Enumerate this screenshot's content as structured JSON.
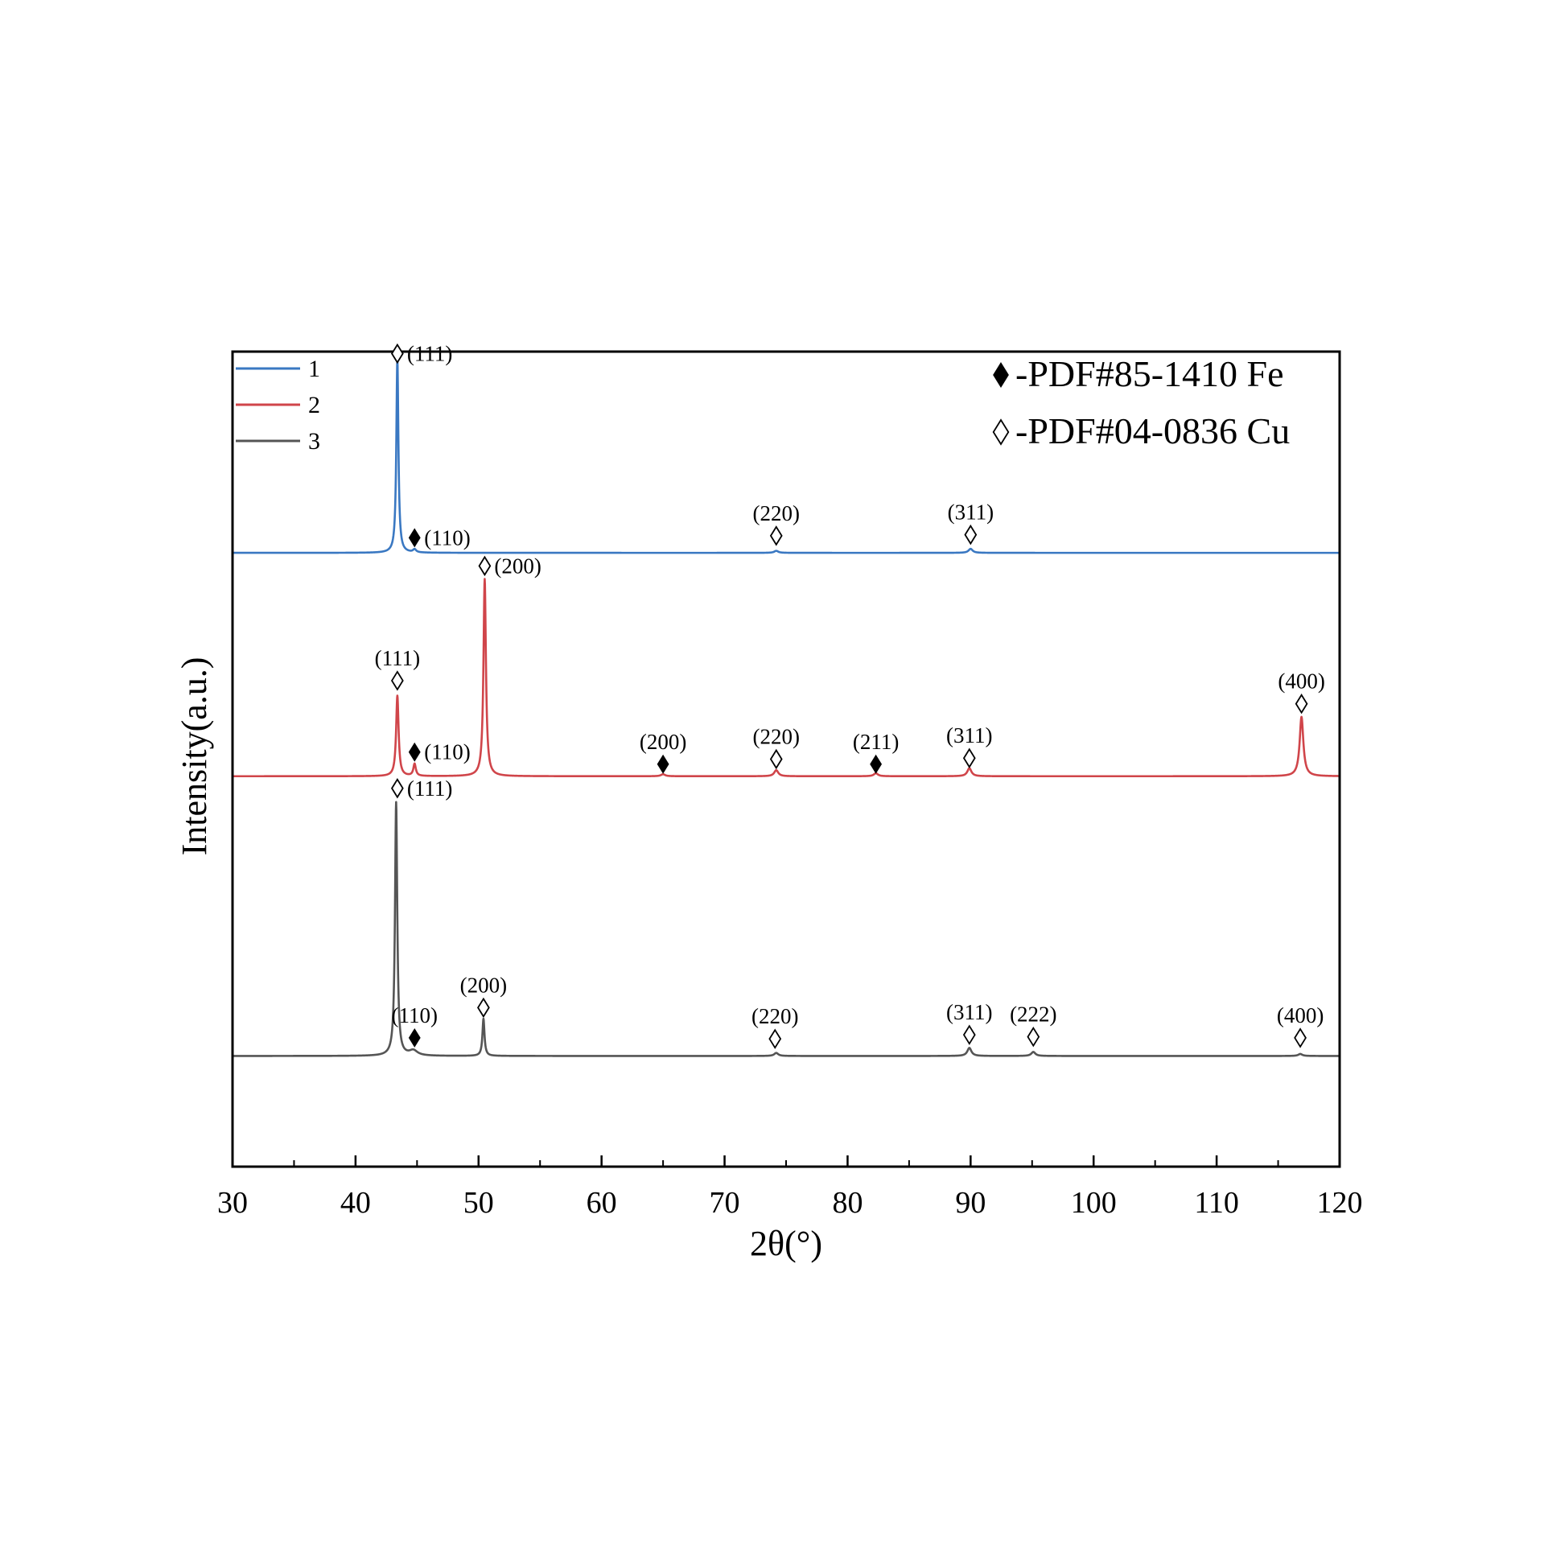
{
  "chart_data": {
    "type": "line",
    "title": "",
    "xlabel": "2θ(°)",
    "ylabel": "Intensity(a.u.)",
    "xlim": [
      30,
      120
    ],
    "ylim": [
      -1.1,
      7.0
    ],
    "x_ticks": [
      30,
      40,
      50,
      60,
      70,
      80,
      90,
      100,
      110,
      120
    ],
    "x_minor_step": 5,
    "grid": false,
    "legend": {
      "position": "top-left"
    },
    "phase_key": [
      {
        "symbol": "filled-diamond",
        "label": "-PDF#85-1410 Fe"
      },
      {
        "symbol": "open-diamond",
        "label": "-PDF#04-0836 Cu"
      }
    ],
    "series": [
      {
        "name": "1",
        "color": "#3a78c2",
        "baseline": 5.0,
        "peaks": [
          {
            "x": 43.4,
            "height": 1.93,
            "width": 0.1
          },
          {
            "x": 44.8,
            "height": 0.03,
            "width": 0.15
          },
          {
            "x": 74.2,
            "height": 0.02,
            "width": 0.2
          },
          {
            "x": 90.0,
            "height": 0.04,
            "width": 0.2
          }
        ]
      },
      {
        "name": "2",
        "color": "#d0454a",
        "baseline": 2.78,
        "peaks": [
          {
            "x": 43.4,
            "height": 0.8,
            "width": 0.12
          },
          {
            "x": 44.8,
            "height": 0.12,
            "width": 0.12
          },
          {
            "x": 50.5,
            "height": 1.96,
            "width": 0.12
          },
          {
            "x": 65.0,
            "height": 0.02,
            "width": 0.2
          },
          {
            "x": 74.2,
            "height": 0.06,
            "width": 0.2
          },
          {
            "x": 82.3,
            "height": 0.03,
            "width": 0.2
          },
          {
            "x": 89.9,
            "height": 0.08,
            "width": 0.2
          },
          {
            "x": 116.9,
            "height": 0.59,
            "width": 0.18
          }
        ]
      },
      {
        "name": "3",
        "color": "#555555",
        "baseline": 0.0,
        "peaks": [
          {
            "x": 43.3,
            "height": 2.52,
            "width": 0.11
          },
          {
            "x": 44.7,
            "height": 0.05,
            "width": 0.4
          },
          {
            "x": 50.4,
            "height": 0.37,
            "width": 0.1
          },
          {
            "x": 74.2,
            "height": 0.03,
            "width": 0.2
          },
          {
            "x": 89.9,
            "height": 0.08,
            "width": 0.2
          },
          {
            "x": 95.1,
            "height": 0.04,
            "width": 0.2
          },
          {
            "x": 116.8,
            "height": 0.02,
            "width": 0.2
          }
        ]
      }
    ],
    "annotations": [
      {
        "symbol": "open",
        "x": 43.4,
        "y": 6.98,
        "label": "(111)",
        "label_pos": "right"
      },
      {
        "symbol": "filled",
        "x": 44.8,
        "y": 5.15,
        "label": "(110)",
        "label_pos": "right"
      },
      {
        "symbol": "open",
        "x": 74.2,
        "y": 5.17,
        "label": "(220)",
        "label_pos": "above"
      },
      {
        "symbol": "open",
        "x": 90.0,
        "y": 5.18,
        "label": "(311)",
        "label_pos": "above"
      },
      {
        "symbol": "open",
        "x": 50.5,
        "y": 4.87,
        "label": "(200)",
        "label_pos": "right"
      },
      {
        "symbol": "open",
        "x": 43.4,
        "y": 3.73,
        "label": "(111)",
        "label_pos": "above"
      },
      {
        "symbol": "filled",
        "x": 44.8,
        "y": 3.02,
        "label": "(110)",
        "label_pos": "right"
      },
      {
        "symbol": "filled",
        "x": 65.0,
        "y": 2.9,
        "label": "(200)",
        "label_pos": "above"
      },
      {
        "symbol": "open",
        "x": 74.2,
        "y": 2.95,
        "label": "(220)",
        "label_pos": "above"
      },
      {
        "symbol": "filled",
        "x": 82.3,
        "y": 2.9,
        "label": "(211)",
        "label_pos": "above"
      },
      {
        "symbol": "open",
        "x": 89.9,
        "y": 2.96,
        "label": "(311)",
        "label_pos": "above"
      },
      {
        "symbol": "open",
        "x": 116.9,
        "y": 3.5,
        "label": "(400)",
        "label_pos": "above"
      },
      {
        "symbol": "open",
        "x": 43.4,
        "y": 2.66,
        "label": "(111)",
        "label_pos": "right"
      },
      {
        "symbol": "filled",
        "x": 44.8,
        "y": 0.18,
        "label": "(110)",
        "label_pos": "above"
      },
      {
        "symbol": "open",
        "x": 50.4,
        "y": 0.48,
        "label": "(200)",
        "label_pos": "above"
      },
      {
        "symbol": "open",
        "x": 74.1,
        "y": 0.17,
        "label": "(220)",
        "label_pos": "above"
      },
      {
        "symbol": "open",
        "x": 89.9,
        "y": 0.21,
        "label": "(311)",
        "label_pos": "above"
      },
      {
        "symbol": "open",
        "x": 95.1,
        "y": 0.19,
        "label": "(222)",
        "label_pos": "above"
      },
      {
        "symbol": "open",
        "x": 116.8,
        "y": 0.18,
        "label": "(400)",
        "label_pos": "above"
      }
    ]
  }
}
